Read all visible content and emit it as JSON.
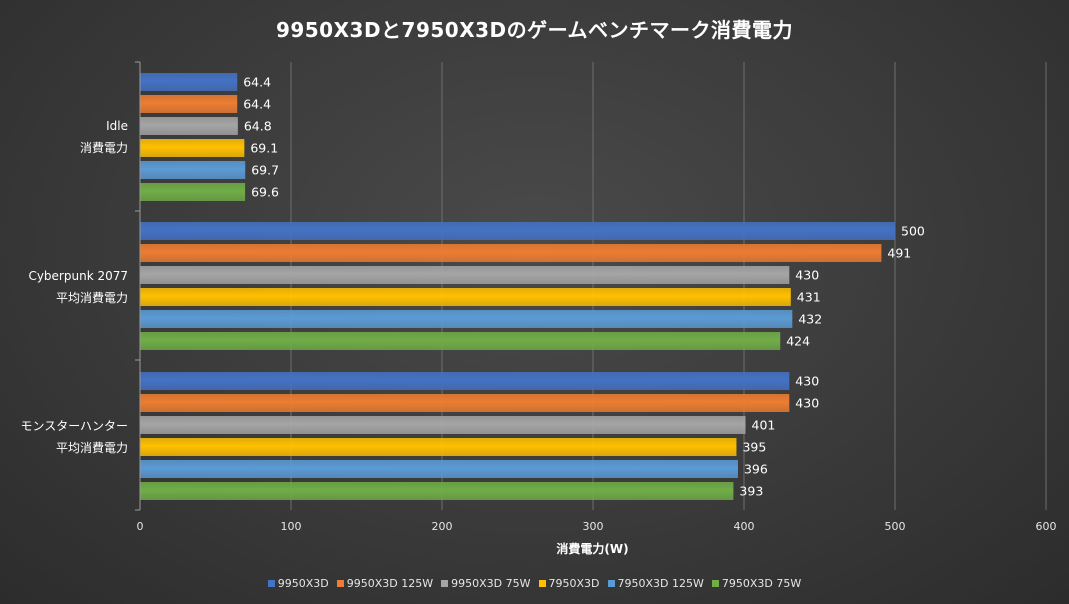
{
  "chart_data": {
    "type": "bar",
    "orientation": "horizontal",
    "title": "9950X3Dと7950X3Dのゲームベンチマーク消費電力",
    "xlabel": "消費電力(W)",
    "ylabel": "",
    "xlim": [
      0,
      600
    ],
    "xticks": [
      0,
      100,
      200,
      300,
      400,
      500,
      600
    ],
    "grid": true,
    "legend_position": "bottom",
    "categories": [
      {
        "line1": "Idle",
        "line2": "消費電力"
      },
      {
        "line1": "Cyberpunk 2077",
        "line2": "平均消費電力"
      },
      {
        "line1": "モンスターハンター",
        "line2": "平均消費電力"
      }
    ],
    "series": [
      {
        "name": "9950X3D",
        "color": "#4472C4",
        "values": [
          64.4,
          500,
          430
        ]
      },
      {
        "name": "9950X3D 125W",
        "color": "#ED7D31",
        "values": [
          64.4,
          491,
          430
        ]
      },
      {
        "name": "9950X3D 75W",
        "color": "#A5A5A5",
        "values": [
          64.8,
          430,
          401
        ]
      },
      {
        "name": "7950X3D",
        "color": "#FFC000",
        "values": [
          69.1,
          431,
          395
        ]
      },
      {
        "name": "7950X3D 125W",
        "color": "#5B9BD5",
        "values": [
          69.7,
          432,
          396
        ]
      },
      {
        "name": "7950X3D 75W",
        "color": "#70AD47",
        "values": [
          69.6,
          424,
          393
        ]
      }
    ],
    "value_labels": [
      [
        "64.4",
        "500",
        "430"
      ],
      [
        "64.4",
        "491",
        "430"
      ],
      [
        "64.8",
        "430",
        "401"
      ],
      [
        "69.1",
        "431",
        "395"
      ],
      [
        "69.7",
        "432",
        "396"
      ],
      [
        "69.6",
        "424",
        "393"
      ]
    ]
  }
}
